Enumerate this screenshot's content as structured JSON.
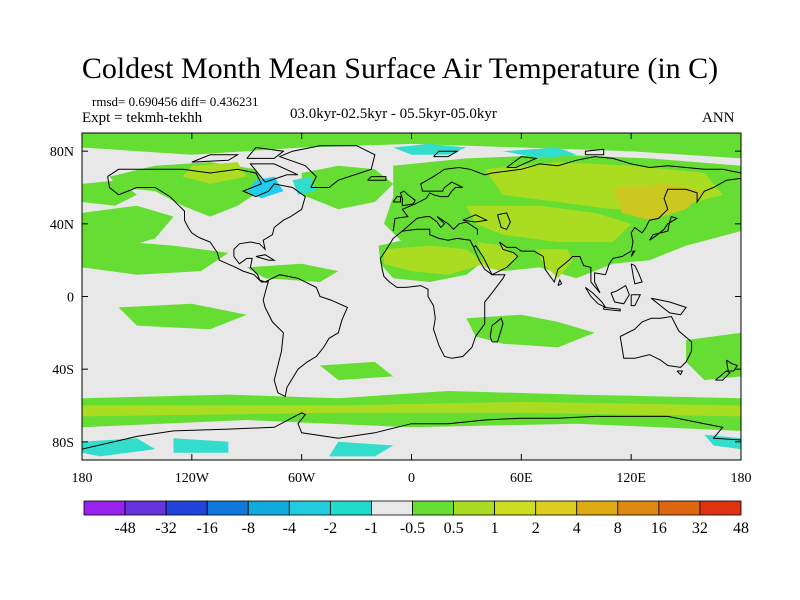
{
  "title": "Coldest Month Mean Surface Air Temperature (in C)",
  "stats": "rmsd= 0.690456 diff= 0.436231",
  "experiment": "Expt = tekmh-tekhh",
  "period": "03.0kyr-02.5kyr - 05.5kyr-05.0kyr",
  "season": "ANN",
  "map": {
    "lon_ticks": [
      {
        "value": -180,
        "label": "180"
      },
      {
        "value": -120,
        "label": "120W"
      },
      {
        "value": -60,
        "label": "60W"
      },
      {
        "value": 0,
        "label": "0"
      },
      {
        "value": 60,
        "label": "60E"
      },
      {
        "value": 120,
        "label": "120E"
      },
      {
        "value": 180,
        "label": "180"
      }
    ],
    "lat_ticks": [
      {
        "value": 80,
        "label": "80N"
      },
      {
        "value": 40,
        "label": "40N"
      },
      {
        "value": 0,
        "label": "0"
      },
      {
        "value": -40,
        "label": "40S"
      },
      {
        "value": -80,
        "label": "80S"
      }
    ],
    "colors": {
      "background": "#e8e8e8",
      "c_05_1": "#66dd33",
      "c_1_2": "#aadd22",
      "c_2_4": "#ccc822",
      "c_m1_m05": "#33ddcc",
      "c_m2_m1": "#22ccee",
      "coast": "#000000"
    }
  },
  "colorbar": {
    "colors": [
      "#9922ee",
      "#6633dd",
      "#2244dd",
      "#1177dd",
      "#11aadd",
      "#22ccdd",
      "#22ddcc",
      "#e8e8e8",
      "#66dd33",
      "#aadd22",
      "#ccdd22",
      "#ddcc22",
      "#ddaa11",
      "#dd8811",
      "#dd6611",
      "#dd3311"
    ],
    "labels": [
      "-48",
      "-32",
      "-16",
      "-8",
      "-4",
      "-2",
      "-1",
      "-0.5",
      "0.5",
      "1",
      "2",
      "4",
      "8",
      "16",
      "32",
      "48"
    ]
  }
}
